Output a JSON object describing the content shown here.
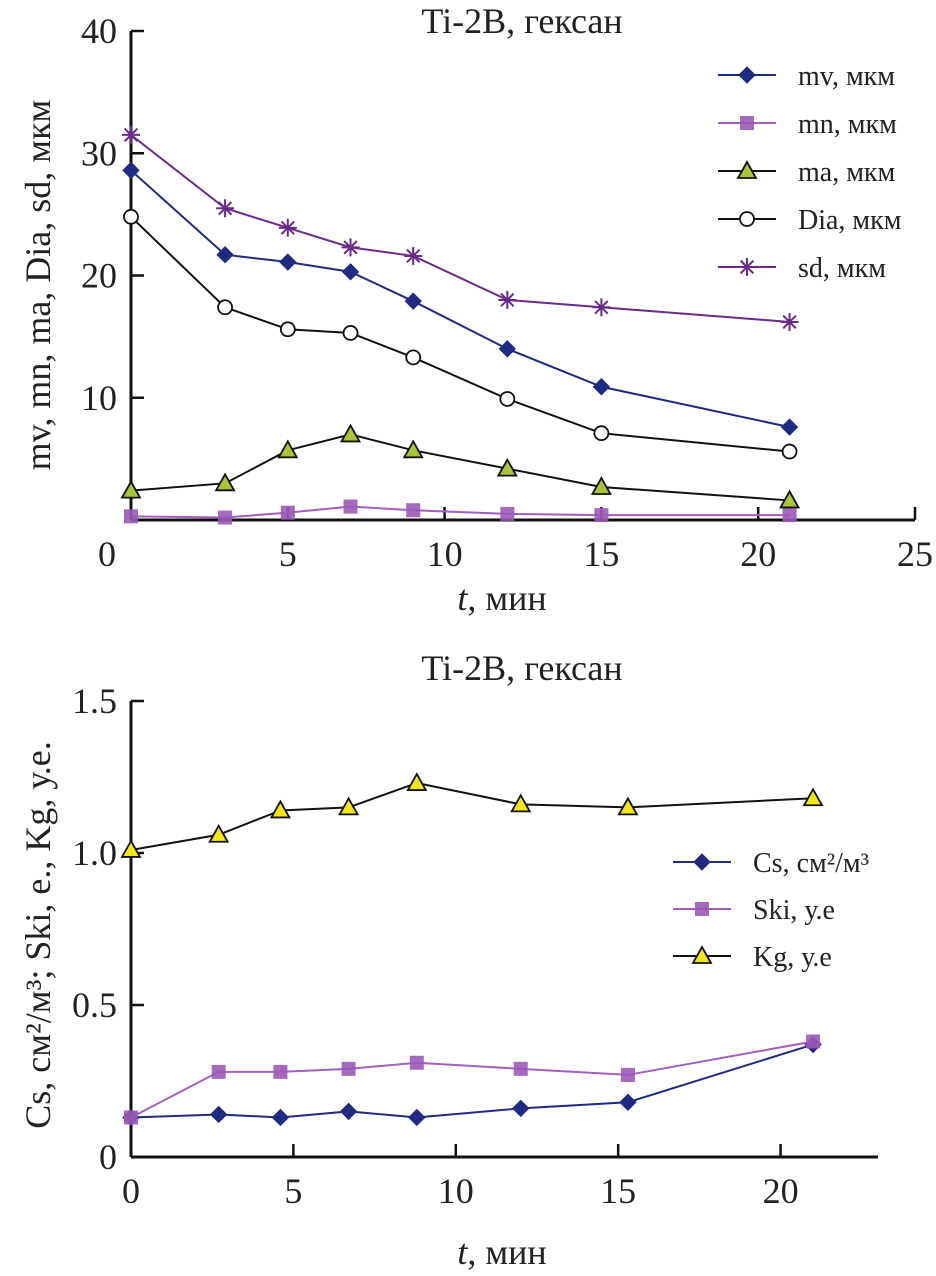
{
  "chart_data": [
    {
      "type": "line",
      "title": "Ti-2B, гексан",
      "xlabel_italic": "t",
      "xlabel_rest": ", мин",
      "ylabel": "mv, mn, ma, Dia, sd, мкм",
      "xlim": [
        0,
        25
      ],
      "ylim": [
        0,
        40
      ],
      "x_ticks": [
        0,
        5,
        10,
        15,
        20,
        25
      ],
      "x_tick_labels": [
        "0",
        "5",
        "10",
        "15",
        "20",
        "25"
      ],
      "y_ticks": [
        10,
        20,
        30,
        40
      ],
      "y_tick_labels": [
        "10",
        "20",
        "30",
        "40"
      ],
      "grid": false,
      "legend_position": "top-right",
      "x": [
        0,
        3,
        5,
        7,
        9,
        12,
        15,
        21
      ],
      "series": [
        {
          "name": "mv, мкм",
          "marker": "diamond",
          "color": "#1f2a80",
          "line_color": "#1f2a80",
          "values": [
            28.6,
            21.7,
            21.1,
            20.3,
            17.9,
            14.0,
            10.9,
            7.6
          ]
        },
        {
          "name": "mn, мкм",
          "marker": "square",
          "color": "#9b59b6",
          "line_color": "#a160c0",
          "values": [
            0.3,
            0.2,
            0.6,
            1.1,
            0.8,
            0.5,
            0.4,
            0.4
          ]
        },
        {
          "name": "ma, мкм",
          "marker": "triangle",
          "color": "#a8c43a",
          "line_color": "#111111",
          "values": [
            2.4,
            3.0,
            5.7,
            7.0,
            5.7,
            4.2,
            2.7,
            1.6
          ]
        },
        {
          "name": "Dia, мкм",
          "marker": "circle-open",
          "color": "#ffffff",
          "line_color": "#111111",
          "values": [
            24.8,
            17.4,
            15.6,
            15.3,
            13.3,
            9.9,
            7.1,
            5.6
          ]
        },
        {
          "name": "sd, мкм",
          "marker": "star",
          "color": "#6a2a8a",
          "line_color": "#6a2a8a",
          "values": [
            31.5,
            25.5,
            23.9,
            22.3,
            21.6,
            18.0,
            17.4,
            16.2
          ]
        }
      ]
    },
    {
      "type": "line",
      "title": "Ti-2B, гексан",
      "xlabel_italic": "t",
      "xlabel_rest": ", мин",
      "ylabel": "Cs, см²/м³; Ski, e., Kg, у.е.",
      "xlim": [
        0,
        23
      ],
      "ylim": [
        0,
        1.5
      ],
      "x_ticks": [
        0,
        5,
        10,
        15,
        20
      ],
      "x_tick_labels": [
        "0",
        "5",
        "10",
        "15",
        "20"
      ],
      "y_ticks": [
        0,
        0.5,
        1.0,
        1.5
      ],
      "y_tick_labels": [
        "0",
        "0.5",
        "1.0",
        "1.5"
      ],
      "grid": false,
      "legend_position": "right",
      "x": [
        0,
        2.7,
        4.6,
        6.7,
        8.8,
        12,
        15.3,
        21
      ],
      "series": [
        {
          "name": "Cs, см²/м³",
          "marker": "diamond",
          "color": "#1f2a80",
          "line_color": "#1f2a80",
          "values": [
            0.13,
            0.14,
            0.13,
            0.15,
            0.13,
            0.16,
            0.18,
            0.37
          ]
        },
        {
          "name": "Ski, у.е",
          "marker": "square",
          "color": "#9b59b6",
          "line_color": "#a160c0",
          "values": [
            0.13,
            0.28,
            0.28,
            0.29,
            0.31,
            0.29,
            0.27,
            0.38
          ]
        },
        {
          "name": "Kg, у.е",
          "marker": "triangle",
          "color": "#f5e51b",
          "line_color": "#111111",
          "values": [
            1.01,
            1.06,
            1.14,
            1.15,
            1.23,
            1.16,
            1.15,
            1.18
          ]
        }
      ]
    }
  ]
}
